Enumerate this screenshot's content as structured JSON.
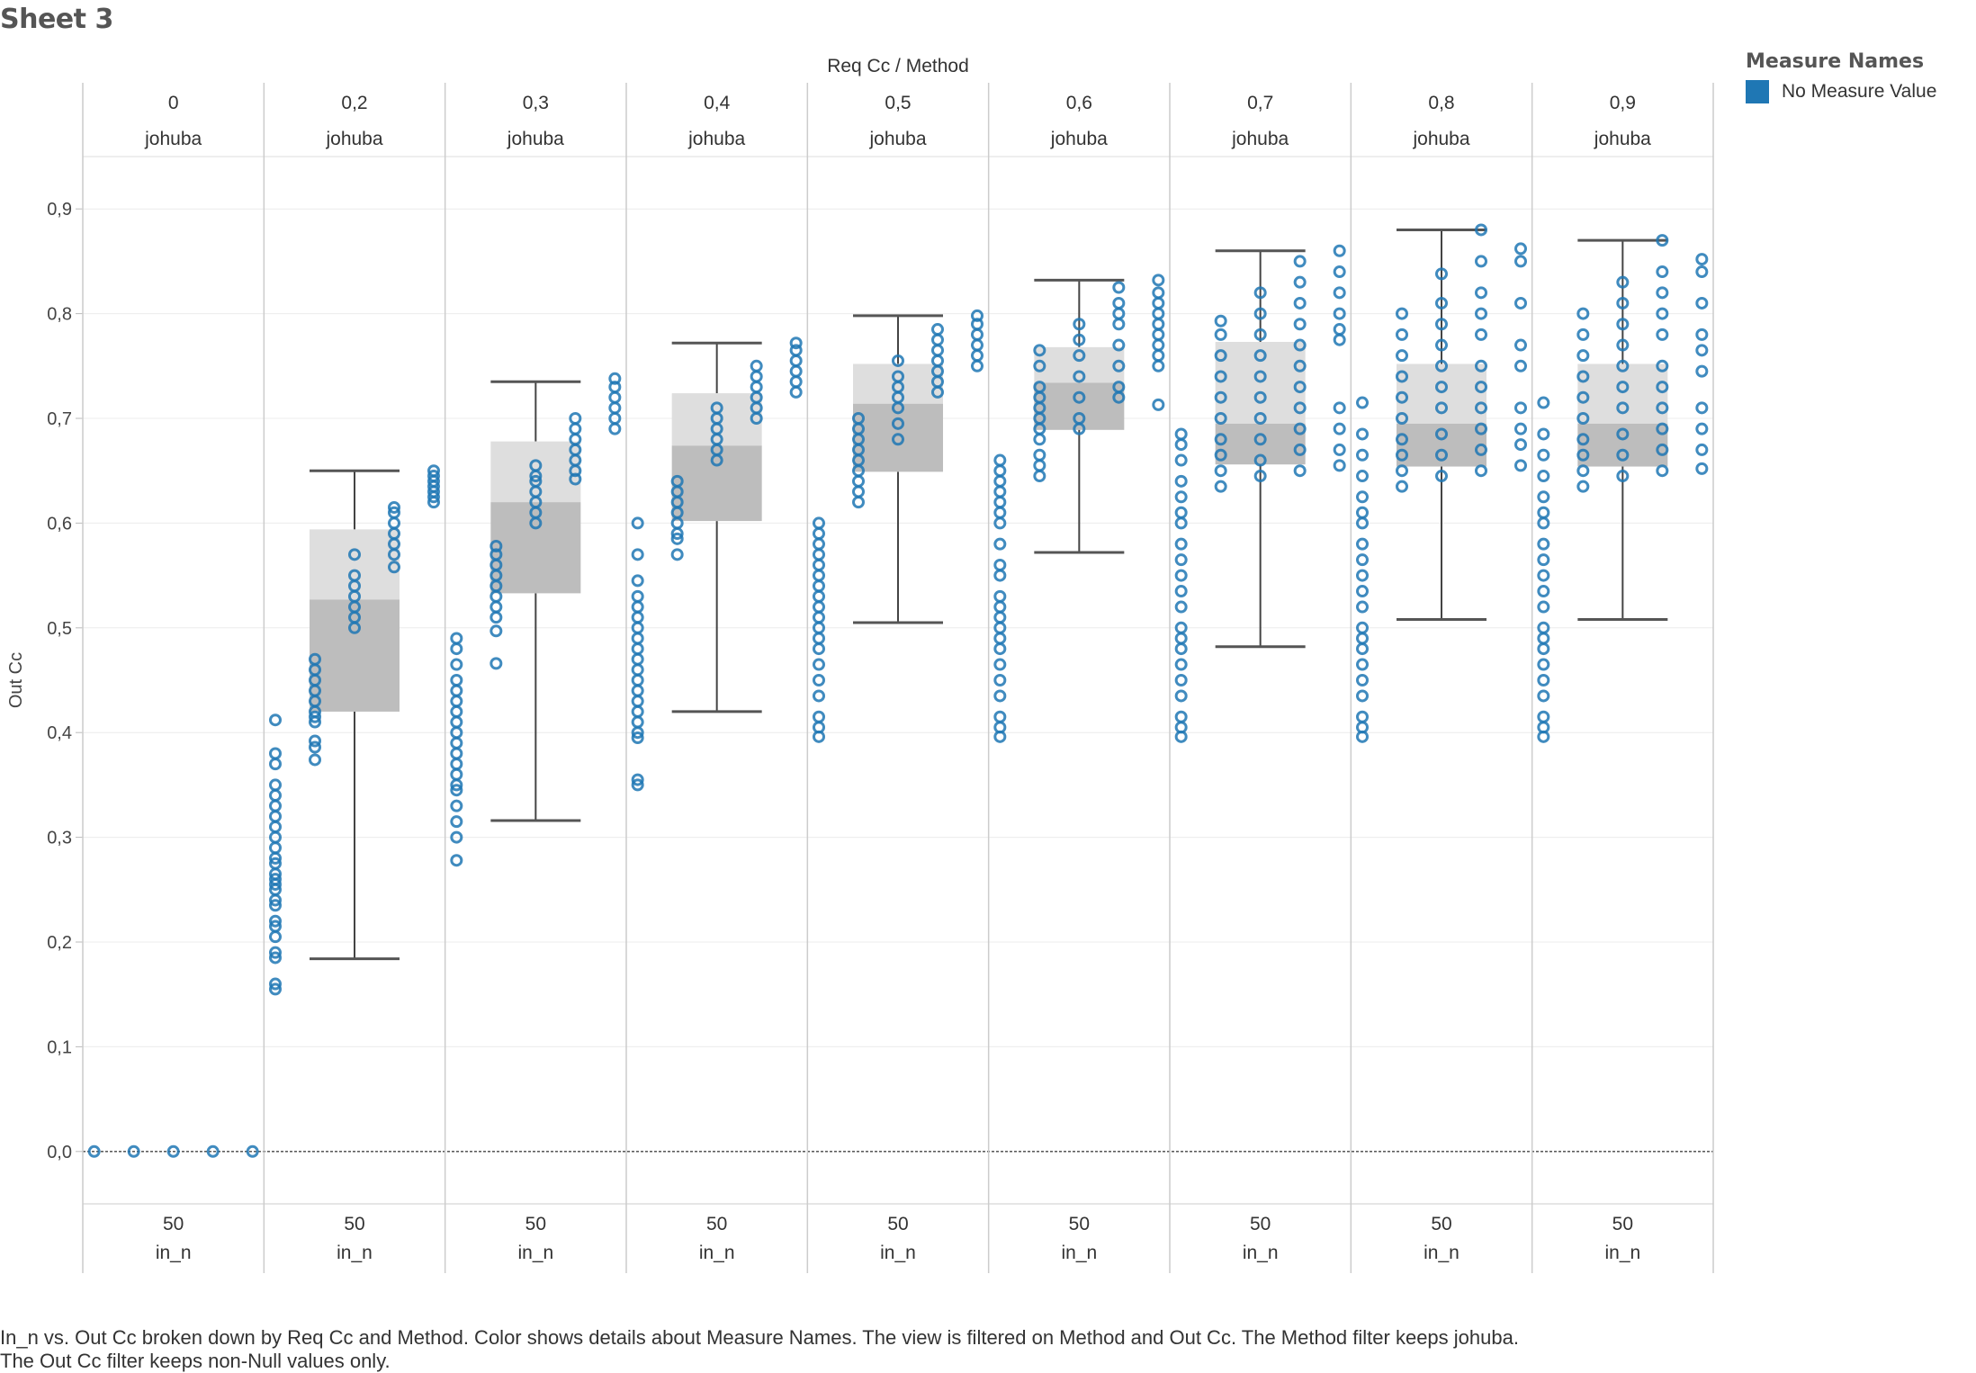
{
  "sheet": {
    "title": "Sheet 3"
  },
  "legend": {
    "title": "Measure Names",
    "item_label": "No Measure Value",
    "item_color": "#1f77b4"
  },
  "caption": {
    "line1": "In_n vs. Out Cc broken down by Req Cc and Method.  Color shows details about Measure Names. The view is filtered on Method and Out Cc. The Method filter keeps johuba.",
    "line2": "The Out Cc filter keeps non-Null values only."
  },
  "chart_data": {
    "type": "box-and-scatter",
    "column_header_title": "Req Cc  /  Method",
    "ylabel": "Out Cc",
    "ylim": [
      -0.05,
      0.95
    ],
    "yticks": [
      "0,0",
      "0,1",
      "0,2",
      "0,3",
      "0,4",
      "0,5",
      "0,6",
      "0,7",
      "0,8",
      "0,9"
    ],
    "grid": true,
    "point_color": "#1f77b4",
    "panels": [
      {
        "req_cc": "0",
        "method": "johuba",
        "in_n": "50",
        "in_n_label": "in_n",
        "box": null,
        "clusters": [
          {
            "values": [
              0.0
            ]
          },
          {
            "values": [
              0.0
            ]
          },
          {
            "values": [
              0.0
            ]
          },
          {
            "values": [
              0.0
            ]
          },
          {
            "values": [
              0.0
            ]
          }
        ]
      },
      {
        "req_cc": "0,2",
        "method": "johuba",
        "in_n": "50",
        "in_n_label": "in_n",
        "box": {
          "whisker_low": 0.184,
          "q1": 0.42,
          "median": 0.527,
          "q3": 0.594,
          "whisker_high": 0.65
        },
        "clusters": [
          {
            "values": [
              0.155,
              0.16,
              0.185,
              0.19,
              0.205,
              0.215,
              0.22,
              0.235,
              0.24,
              0.25,
              0.255,
              0.26,
              0.265,
              0.275,
              0.28,
              0.29,
              0.3,
              0.31,
              0.32,
              0.33,
              0.34,
              0.35,
              0.37,
              0.38,
              0.412
            ]
          },
          {
            "values": [
              0.374,
              0.386,
              0.392,
              0.41,
              0.415,
              0.42,
              0.43,
              0.44,
              0.45,
              0.46,
              0.47
            ]
          },
          {
            "values": [
              0.5,
              0.51,
              0.52,
              0.53,
              0.54,
              0.55,
              0.57
            ]
          },
          {
            "values": [
              0.558,
              0.57,
              0.58,
              0.59,
              0.6,
              0.61,
              0.615
            ]
          },
          {
            "values": [
              0.62,
              0.625,
              0.63,
              0.635,
              0.64,
              0.645,
              0.65
            ]
          }
        ]
      },
      {
        "req_cc": "0,3",
        "method": "johuba",
        "in_n": "50",
        "in_n_label": "in_n",
        "box": {
          "whisker_low": 0.316,
          "q1": 0.533,
          "median": 0.62,
          "q3": 0.678,
          "whisker_high": 0.735
        },
        "clusters": [
          {
            "values": [
              0.278,
              0.3,
              0.315,
              0.33,
              0.345,
              0.35,
              0.36,
              0.37,
              0.38,
              0.39,
              0.4,
              0.41,
              0.42,
              0.43,
              0.44,
              0.45,
              0.465,
              0.48,
              0.49
            ]
          },
          {
            "values": [
              0.466,
              0.497,
              0.51,
              0.52,
              0.53,
              0.54,
              0.55,
              0.56,
              0.57,
              0.578
            ]
          },
          {
            "values": [
              0.6,
              0.61,
              0.62,
              0.63,
              0.64,
              0.645,
              0.655
            ]
          },
          {
            "values": [
              0.642,
              0.65,
              0.66,
              0.67,
              0.68,
              0.69,
              0.7
            ]
          },
          {
            "values": [
              0.69,
              0.7,
              0.71,
              0.72,
              0.73,
              0.738
            ]
          }
        ]
      },
      {
        "req_cc": "0,4",
        "method": "johuba",
        "in_n": "50",
        "in_n_label": "in_n",
        "box": {
          "whisker_low": 0.42,
          "q1": 0.602,
          "median": 0.674,
          "q3": 0.724,
          "whisker_high": 0.772
        },
        "clusters": [
          {
            "values": [
              0.35,
              0.355,
              0.395,
              0.4,
              0.41,
              0.42,
              0.43,
              0.44,
              0.45,
              0.46,
              0.47,
              0.48,
              0.49,
              0.5,
              0.51,
              0.52,
              0.53,
              0.545,
              0.57,
              0.6
            ]
          },
          {
            "values": [
              0.57,
              0.585,
              0.59,
              0.6,
              0.61,
              0.62,
              0.63,
              0.64
            ]
          },
          {
            "values": [
              0.66,
              0.67,
              0.68,
              0.69,
              0.7,
              0.71
            ]
          },
          {
            "values": [
              0.7,
              0.71,
              0.72,
              0.73,
              0.74,
              0.75
            ]
          },
          {
            "values": [
              0.725,
              0.735,
              0.745,
              0.755,
              0.765,
              0.772
            ]
          }
        ]
      },
      {
        "req_cc": "0,5",
        "method": "johuba",
        "in_n": "50",
        "in_n_label": "in_n",
        "box": {
          "whisker_low": 0.505,
          "q1": 0.649,
          "median": 0.714,
          "q3": 0.752,
          "whisker_high": 0.798
        },
        "clusters": [
          {
            "values": [
              0.396,
              0.405,
              0.415,
              0.435,
              0.45,
              0.465,
              0.48,
              0.49,
              0.5,
              0.51,
              0.52,
              0.53,
              0.54,
              0.55,
              0.56,
              0.57,
              0.58,
              0.59,
              0.6
            ]
          },
          {
            "values": [
              0.62,
              0.63,
              0.64,
              0.65,
              0.66,
              0.67,
              0.68,
              0.69,
              0.7
            ]
          },
          {
            "values": [
              0.68,
              0.695,
              0.71,
              0.72,
              0.73,
              0.74,
              0.755
            ]
          },
          {
            "values": [
              0.725,
              0.735,
              0.745,
              0.755,
              0.765,
              0.775,
              0.785
            ]
          },
          {
            "values": [
              0.75,
              0.76,
              0.77,
              0.78,
              0.79,
              0.798
            ]
          }
        ]
      },
      {
        "req_cc": "0,6",
        "method": "johuba",
        "in_n": "50",
        "in_n_label": "in_n",
        "box": {
          "whisker_low": 0.572,
          "q1": 0.689,
          "median": 0.734,
          "q3": 0.768,
          "whisker_high": 0.832
        },
        "clusters": [
          {
            "values": [
              0.396,
              0.405,
              0.415,
              0.435,
              0.45,
              0.465,
              0.48,
              0.49,
              0.5,
              0.51,
              0.52,
              0.53,
              0.55,
              0.56,
              0.58,
              0.6,
              0.61,
              0.62,
              0.63,
              0.64,
              0.65,
              0.66
            ]
          },
          {
            "values": [
              0.645,
              0.655,
              0.665,
              0.68,
              0.69,
              0.7,
              0.71,
              0.72,
              0.73,
              0.75,
              0.765
            ]
          },
          {
            "values": [
              0.69,
              0.7,
              0.72,
              0.74,
              0.76,
              0.775,
              0.79
            ]
          },
          {
            "values": [
              0.72,
              0.73,
              0.75,
              0.77,
              0.79,
              0.8,
              0.81,
              0.825
            ]
          },
          {
            "values": [
              0.713,
              0.75,
              0.76,
              0.77,
              0.78,
              0.79,
              0.8,
              0.81,
              0.82,
              0.832
            ]
          }
        ]
      },
      {
        "req_cc": "0,7",
        "method": "johuba",
        "in_n": "50",
        "in_n_label": "in_n",
        "box": {
          "whisker_low": 0.482,
          "q1": 0.656,
          "median": 0.695,
          "q3": 0.773,
          "whisker_high": 0.86
        },
        "clusters": [
          {
            "values": [
              0.396,
              0.405,
              0.415,
              0.435,
              0.45,
              0.465,
              0.48,
              0.49,
              0.5,
              0.52,
              0.535,
              0.55,
              0.565,
              0.58,
              0.6,
              0.61,
              0.625,
              0.64,
              0.66,
              0.675,
              0.685
            ]
          },
          {
            "values": [
              0.635,
              0.65,
              0.665,
              0.68,
              0.7,
              0.72,
              0.74,
              0.76,
              0.78,
              0.793
            ]
          },
          {
            "values": [
              0.645,
              0.66,
              0.68,
              0.7,
              0.72,
              0.74,
              0.76,
              0.78,
              0.8,
              0.82
            ]
          },
          {
            "values": [
              0.65,
              0.67,
              0.69,
              0.71,
              0.73,
              0.75,
              0.77,
              0.79,
              0.81,
              0.83,
              0.85
            ]
          },
          {
            "values": [
              0.655,
              0.67,
              0.69,
              0.71,
              0.775,
              0.785,
              0.8,
              0.82,
              0.84,
              0.86
            ]
          }
        ]
      },
      {
        "req_cc": "0,8",
        "method": "johuba",
        "in_n": "50",
        "in_n_label": "in_n",
        "box": {
          "whisker_low": 0.508,
          "q1": 0.654,
          "median": 0.695,
          "q3": 0.752,
          "whisker_high": 0.88
        },
        "clusters": [
          {
            "values": [
              0.396,
              0.405,
              0.415,
              0.435,
              0.45,
              0.465,
              0.48,
              0.49,
              0.5,
              0.52,
              0.535,
              0.55,
              0.565,
              0.58,
              0.6,
              0.61,
              0.625,
              0.645,
              0.665,
              0.685,
              0.715
            ]
          },
          {
            "values": [
              0.635,
              0.65,
              0.665,
              0.68,
              0.7,
              0.72,
              0.74,
              0.76,
              0.78,
              0.8
            ]
          },
          {
            "values": [
              0.645,
              0.665,
              0.685,
              0.71,
              0.73,
              0.75,
              0.77,
              0.79,
              0.81,
              0.838
            ]
          },
          {
            "values": [
              0.65,
              0.67,
              0.69,
              0.71,
              0.73,
              0.75,
              0.78,
              0.8,
              0.82,
              0.85,
              0.88
            ]
          },
          {
            "values": [
              0.655,
              0.675,
              0.69,
              0.71,
              0.75,
              0.77,
              0.81,
              0.85,
              0.862
            ]
          }
        ]
      },
      {
        "req_cc": "0,9",
        "method": "johuba",
        "in_n": "50",
        "in_n_label": "in_n",
        "box": {
          "whisker_low": 0.508,
          "q1": 0.654,
          "median": 0.695,
          "q3": 0.752,
          "whisker_high": 0.87
        },
        "clusters": [
          {
            "values": [
              0.396,
              0.405,
              0.415,
              0.435,
              0.45,
              0.465,
              0.48,
              0.49,
              0.5,
              0.52,
              0.535,
              0.55,
              0.565,
              0.58,
              0.6,
              0.61,
              0.625,
              0.645,
              0.665,
              0.685,
              0.715
            ]
          },
          {
            "values": [
              0.635,
              0.65,
              0.665,
              0.68,
              0.7,
              0.72,
              0.74,
              0.76,
              0.78,
              0.8
            ]
          },
          {
            "values": [
              0.645,
              0.665,
              0.685,
              0.71,
              0.73,
              0.75,
              0.77,
              0.79,
              0.81,
              0.83
            ]
          },
          {
            "values": [
              0.65,
              0.67,
              0.69,
              0.71,
              0.73,
              0.75,
              0.78,
              0.8,
              0.82,
              0.84,
              0.87
            ]
          },
          {
            "values": [
              0.652,
              0.67,
              0.69,
              0.71,
              0.745,
              0.765,
              0.78,
              0.81,
              0.84,
              0.852
            ]
          }
        ]
      }
    ]
  }
}
